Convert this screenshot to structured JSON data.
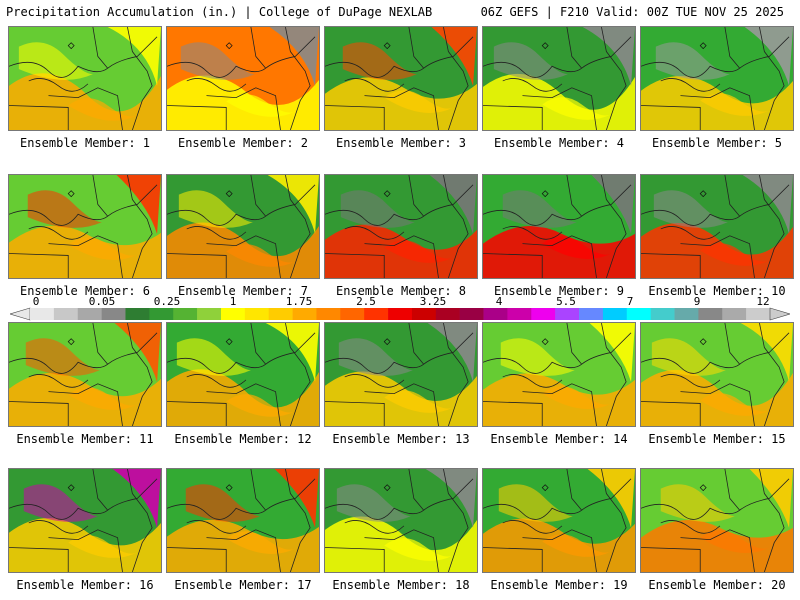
{
  "header": {
    "title_left": "Precipitation Accumulation (in.) | College of DuPage NEXLAB",
    "title_right": "06Z GEFS | F210 Valid: 00Z TUE NOV 25 2025"
  },
  "panels": [
    {
      "label": "Ensemble Member: 1",
      "palette": [
        "#ffff00",
        "#ffaa00",
        "#66cc33"
      ]
    },
    {
      "label": "Ensemble Member: 2",
      "palette": [
        "#888888",
        "#ffff00",
        "#ff7700"
      ]
    },
    {
      "label": "Ensemble Member: 3",
      "palette": [
        "#ff4400",
        "#ffcc00",
        "#339933"
      ]
    },
    {
      "label": "Ensemble Member: 4",
      "palette": [
        "#888888",
        "#ffff00",
        "#339933"
      ]
    },
    {
      "label": "Ensemble Member: 5",
      "palette": [
        "#999999",
        "#ffcc00",
        "#33aa33"
      ]
    },
    {
      "label": "Ensemble Member: 6",
      "palette": [
        "#ff3300",
        "#ffaa00",
        "#66cc33"
      ]
    },
    {
      "label": "Ensemble Member: 7",
      "palette": [
        "#ffee00",
        "#ff8800",
        "#339933"
      ]
    },
    {
      "label": "Ensemble Member: 8",
      "palette": [
        "#777777",
        "#ff2200",
        "#339933"
      ]
    },
    {
      "label": "Ensemble Member: 9",
      "palette": [
        "#777777",
        "#ff0000",
        "#33aa33"
      ]
    },
    {
      "label": "Ensemble Member: 10",
      "palette": [
        "#888888",
        "#ff3300",
        "#339933"
      ]
    },
    {
      "label": "Ensemble Member: 11",
      "palette": [
        "#ff5500",
        "#ffaa00",
        "#66cc33"
      ]
    },
    {
      "label": "Ensemble Member: 12",
      "palette": [
        "#ffff00",
        "#ffaa00",
        "#33aa33"
      ]
    },
    {
      "label": "Ensemble Member: 13",
      "palette": [
        "#888888",
        "#ffcc00",
        "#339933"
      ]
    },
    {
      "label": "Ensemble Member: 14",
      "palette": [
        "#ffff00",
        "#ffaa00",
        "#66cc33"
      ]
    },
    {
      "label": "Ensemble Member: 15",
      "palette": [
        "#ffdd00",
        "#ffaa00",
        "#66cc33"
      ]
    },
    {
      "label": "Ensemble Member: 16",
      "palette": [
        "#cc00aa",
        "#ffcc00",
        "#339933"
      ]
    },
    {
      "label": "Ensemble Member: 17",
      "palette": [
        "#ff3300",
        "#ffaa00",
        "#33aa33"
      ]
    },
    {
      "label": "Ensemble Member: 18",
      "palette": [
        "#888888",
        "#ffff00",
        "#339933"
      ]
    },
    {
      "label": "Ensemble Member: 19",
      "palette": [
        "#ffcc00",
        "#ff9900",
        "#33aa33"
      ]
    },
    {
      "label": "Ensemble Member: 20",
      "palette": [
        "#ffcc00",
        "#ff7700",
        "#66cc33"
      ]
    }
  ],
  "colorbar": {
    "ticks": [
      "0",
      "0.05",
      "0.25",
      "1",
      "1.75",
      "2.5",
      "3.25",
      "4",
      "5.5",
      "7",
      "9",
      "12"
    ],
    "colors": [
      "#e8e8e8",
      "#c8c8c8",
      "#a8a8a8",
      "#888888",
      "#2e7d32",
      "#339933",
      "#55b333",
      "#8fd13a",
      "#ffff00",
      "#ffe600",
      "#ffcc00",
      "#ffaa00",
      "#ff8800",
      "#ff6600",
      "#ff3300",
      "#ee0000",
      "#cc0000",
      "#aa0022",
      "#990044",
      "#aa0088",
      "#cc00aa",
      "#ee00ee",
      "#aa44ff",
      "#6688ff",
      "#00ccff",
      "#00ffff",
      "#44cccc",
      "#66aaaa",
      "#888888",
      "#aaaaaa",
      "#cccccc"
    ]
  }
}
